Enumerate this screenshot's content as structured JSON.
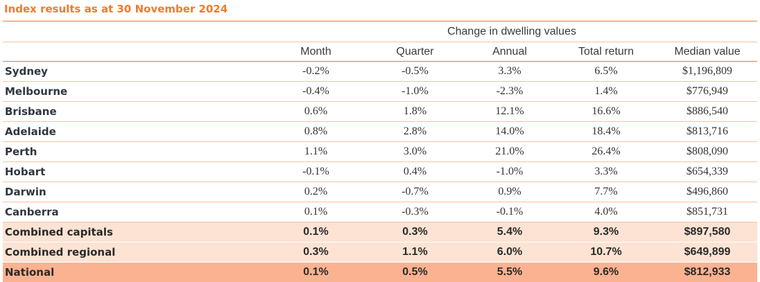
{
  "title": "Index results as at 30 November 2024",
  "table": {
    "group_header": "Change in dwelling values",
    "columns": [
      "Month",
      "Quarter",
      "Annual",
      "Total return",
      "Median value"
    ],
    "rows": [
      {
        "region": "Sydney",
        "values": [
          "-0.2%",
          "-0.5%",
          "3.3%",
          "6.5%",
          "$1,196,809"
        ]
      },
      {
        "region": "Melbourne",
        "values": [
          "-0.4%",
          "-1.0%",
          "-2.3%",
          "1.4%",
          "$776,949"
        ]
      },
      {
        "region": "Brisbane",
        "values": [
          "0.6%",
          "1.8%",
          "12.1%",
          "16.6%",
          "$886,540"
        ]
      },
      {
        "region": "Adelaide",
        "values": [
          "0.8%",
          "2.8%",
          "14.0%",
          "18.4%",
          "$813,716"
        ]
      },
      {
        "region": "Perth",
        "values": [
          "1.1%",
          "3.0%",
          "21.0%",
          "26.4%",
          "$808,090"
        ]
      },
      {
        "region": "Hobart",
        "values": [
          "-0.1%",
          "0.4%",
          "-1.0%",
          "3.3%",
          "$654,339"
        ]
      },
      {
        "region": "Darwin",
        "values": [
          "0.2%",
          "-0.7%",
          "0.9%",
          "7.7%",
          "$496,860"
        ]
      },
      {
        "region": "Canberra",
        "values": [
          "0.1%",
          "-0.3%",
          "-0.1%",
          "4.0%",
          "$851,731"
        ]
      },
      {
        "region": "Combined capitals",
        "values": [
          "0.1%",
          "0.3%",
          "5.4%",
          "9.3%",
          "$897,580"
        ]
      },
      {
        "region": "Combined regional",
        "values": [
          "0.3%",
          "1.1%",
          "6.0%",
          "10.7%",
          "$649,899"
        ]
      },
      {
        "region": "National",
        "values": [
          "0.1%",
          "0.5%",
          "5.5%",
          "9.6%",
          "$812,933"
        ]
      }
    ]
  },
  "colors": {
    "title_orange": "#f07a2a",
    "rule_orange": "#f07a2a",
    "aggregate_row_fill": "#fce3d3",
    "national_row_fill": "#fbb290"
  }
}
